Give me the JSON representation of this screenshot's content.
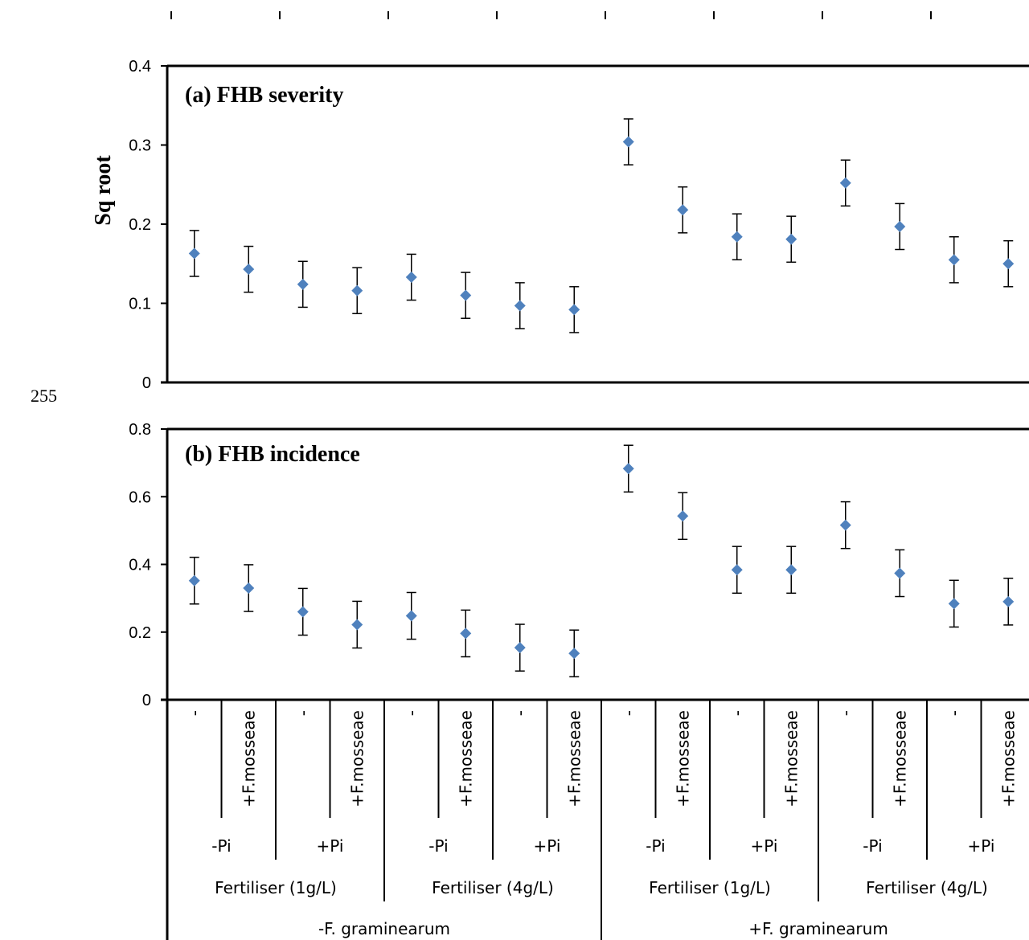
{
  "line_number": "255",
  "chart_data": [
    {
      "type": "scatter",
      "title": "(a) FHB severity",
      "ylabel": "Sq root",
      "ylim": [
        0,
        0.4
      ],
      "yticks": [
        "0",
        "0.1",
        "0.2",
        "0.3",
        "0.4"
      ],
      "values": [
        0.163,
        0.143,
        0.124,
        0.116,
        0.133,
        0.11,
        0.097,
        0.092,
        0.304,
        0.218,
        0.184,
        0.181,
        0.252,
        0.197,
        0.155,
        0.15
      ],
      "error": 0.029,
      "marker_color": "#4f81bd",
      "grid": false
    },
    {
      "type": "scatter",
      "title": "(b) FHB incidence",
      "ylabel": "",
      "ylim": [
        0,
        0.8
      ],
      "yticks": [
        "0",
        "0.2",
        "0.4",
        "0.6",
        "0.8"
      ],
      "values": [
        0.352,
        0.33,
        0.26,
        0.222,
        0.248,
        0.196,
        0.154,
        0.137,
        0.683,
        0.543,
        0.384,
        0.384,
        0.516,
        0.374,
        0.284,
        0.29
      ],
      "error": 0.069,
      "marker_color": "#4f81bd",
      "grid": false
    }
  ],
  "categories": {
    "level1": [
      "-",
      "+F.mosseae",
      "-",
      "+F.mosseae",
      "-",
      "+F.mosseae",
      "-",
      "+F.mosseae",
      "-",
      "+F.mosseae",
      "-",
      "+F.mosseae",
      "-",
      "+F.mosseae",
      "-",
      "+F.mosseae"
    ],
    "level2": [
      "-Pi",
      "+Pi",
      "-Pi",
      "+Pi",
      "-Pi",
      "+Pi",
      "-Pi",
      "+Pi"
    ],
    "level3": [
      "Fertiliser (1g/L)",
      "Fertiliser (4g/L)",
      "Fertiliser (1g/L)",
      "Fertiliser (4g/L)"
    ],
    "level4": [
      "-F. graminearum",
      "+F. graminearum"
    ]
  }
}
